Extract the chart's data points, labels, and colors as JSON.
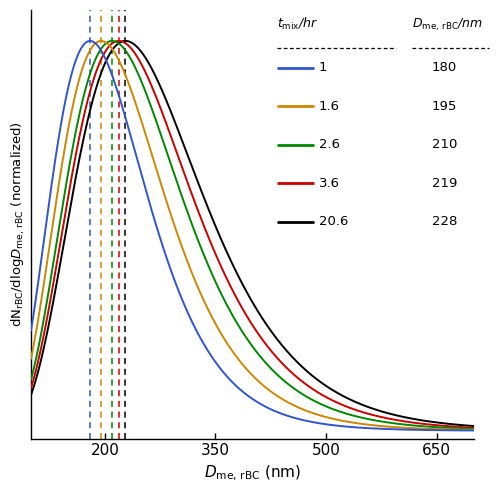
{
  "series": [
    {
      "label": "1",
      "color": "#3355cc",
      "peak": 180,
      "D_me": 180,
      "sigma": 0.155
    },
    {
      "label": "1.6",
      "color": "#cc8800",
      "peak": 195,
      "D_me": 195,
      "sigma": 0.158
    },
    {
      "label": "2.6",
      "color": "#008800",
      "peak": 210,
      "D_me": 210,
      "sigma": 0.16
    },
    {
      "label": "3.6",
      "color": "#cc0000",
      "peak": 219,
      "D_me": 219,
      "sigma": 0.162
    },
    {
      "label": "20.6",
      "color": "#000000",
      "peak": 228,
      "D_me": 228,
      "sigma": 0.164
    }
  ],
  "x_min": 100,
  "x_max": 700,
  "x_ticks": [
    200,
    350,
    500,
    650
  ],
  "ylim_min": -0.02,
  "ylim_max": 1.08,
  "background": "#ffffff",
  "legend_entries": [
    {
      "tmix": "1",
      "dme": "180",
      "color": "#3355cc"
    },
    {
      "tmix": "1.6",
      "dme": "195",
      "color": "#cc8800"
    },
    {
      "tmix": "2.6",
      "dme": "210",
      "color": "#008800"
    },
    {
      "tmix": "3.6",
      "dme": "219",
      "color": "#cc0000"
    },
    {
      "tmix": "20.6",
      "dme": "228",
      "color": "#000000"
    }
  ]
}
